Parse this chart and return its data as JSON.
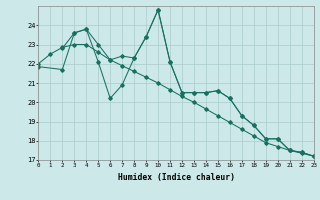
{
  "xlabel": "Humidex (Indice chaleur)",
  "bg_color": "#cce8e8",
  "grid_color": "#aacccc",
  "line_color": "#1a7060",
  "xlim": [
    0,
    23
  ],
  "ylim": [
    17,
    25
  ],
  "yticks": [
    17,
    18,
    19,
    20,
    21,
    22,
    23,
    24
  ],
  "xticks": [
    0,
    1,
    2,
    3,
    4,
    5,
    6,
    7,
    8,
    9,
    10,
    11,
    12,
    13,
    14,
    15,
    16,
    17,
    18,
    19,
    20,
    21,
    22,
    23
  ],
  "line1_x": [
    0,
    1,
    2,
    3,
    4,
    5,
    6,
    7,
    8,
    9,
    10,
    11,
    12,
    13,
    14,
    15,
    16,
    17,
    18,
    19,
    20,
    21,
    22,
    23
  ],
  "line1_y": [
    22.0,
    22.5,
    22.85,
    23.0,
    23.0,
    22.6,
    22.2,
    21.9,
    21.6,
    21.3,
    21.0,
    20.65,
    20.3,
    20.0,
    19.65,
    19.3,
    18.95,
    18.6,
    18.25,
    17.9,
    17.7,
    17.5,
    17.35,
    17.2
  ],
  "line2_x": [
    0,
    2,
    3,
    4,
    5,
    6,
    7,
    8,
    9,
    10,
    11,
    12,
    13,
    14,
    15,
    16,
    17,
    18,
    19,
    20,
    21,
    22,
    23
  ],
  "line2_y": [
    21.85,
    21.7,
    23.6,
    23.8,
    22.1,
    20.2,
    20.9,
    22.3,
    23.4,
    24.8,
    22.1,
    20.5,
    20.5,
    20.5,
    20.6,
    20.2,
    19.3,
    18.8,
    18.1,
    18.1,
    17.5,
    17.4,
    17.2
  ],
  "line3_x": [
    2,
    3,
    4,
    5,
    6,
    7,
    8,
    9,
    10,
    11,
    12,
    13,
    14,
    15,
    16,
    17,
    18,
    19,
    20,
    21,
    22,
    23
  ],
  "line3_y": [
    22.8,
    23.6,
    23.8,
    23.0,
    22.2,
    22.4,
    22.3,
    23.4,
    24.8,
    22.1,
    20.5,
    20.5,
    20.5,
    20.6,
    20.2,
    19.3,
    18.8,
    18.1,
    18.1,
    17.5,
    17.4,
    17.2
  ]
}
